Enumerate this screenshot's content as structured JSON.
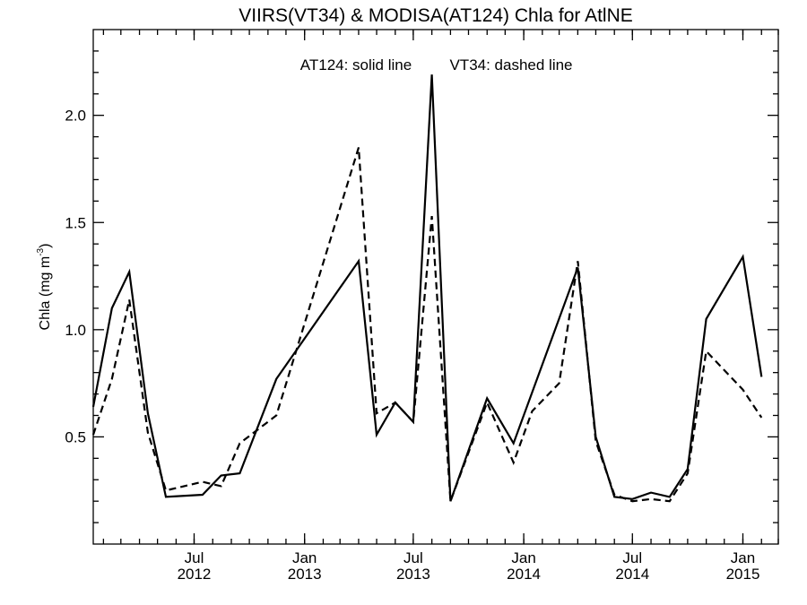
{
  "chart_data": {
    "type": "line",
    "title": "VIIRS(VT34) & MODISA(AT124)  Chla for AtlNE",
    "annotation_solid": "AT124: solid line",
    "annotation_dashed": "VT34: dashed line",
    "ylabel_main": "Chla (mg m",
    "ylabel_sup": "-3",
    "ylabel_close": ")",
    "xlim": [
      "2012-01-15",
      "2015-03-01"
    ],
    "ylim": [
      0.0,
      2.4
    ],
    "yticks": [
      "0.5",
      "1.0",
      "1.5",
      "2.0"
    ],
    "ytick_values": [
      0.5,
      1.0,
      1.5,
      2.0
    ],
    "xticks": [
      {
        "date": "2012-07-01",
        "month": "Jul",
        "year": "2012"
      },
      {
        "date": "2013-01-01",
        "month": "Jan",
        "year": "2013"
      },
      {
        "date": "2013-07-01",
        "month": "Jul",
        "year": "2013"
      },
      {
        "date": "2014-01-01",
        "month": "Jan",
        "year": "2014"
      },
      {
        "date": "2014-07-01",
        "month": "Jul",
        "year": "2014"
      },
      {
        "date": "2015-01-01",
        "month": "Jan",
        "year": "2015"
      }
    ],
    "series": [
      {
        "name": "AT124",
        "style": "solid",
        "color": "#000000",
        "points": [
          [
            "2012-01-15",
            0.64
          ],
          [
            "2012-02-15",
            1.1
          ],
          [
            "2012-03-15",
            1.27
          ],
          [
            "2012-04-15",
            0.61
          ],
          [
            "2012-05-15",
            0.22
          ],
          [
            "2012-07-15",
            0.23
          ],
          [
            "2012-08-15",
            0.32
          ],
          [
            "2012-09-15",
            0.33
          ],
          [
            "2012-11-15",
            0.77
          ],
          [
            "2013-04-01",
            1.32
          ],
          [
            "2013-05-01",
            0.51
          ],
          [
            "2013-06-01",
            0.66
          ],
          [
            "2013-07-01",
            0.57
          ],
          [
            "2013-08-01",
            2.19
          ],
          [
            "2013-09-01",
            0.2
          ],
          [
            "2013-11-01",
            0.68
          ],
          [
            "2013-12-15",
            0.47
          ],
          [
            "2014-04-01",
            1.29
          ],
          [
            "2014-05-01",
            0.5
          ],
          [
            "2014-06-01",
            0.22
          ],
          [
            "2014-07-01",
            0.21
          ],
          [
            "2014-08-01",
            0.24
          ],
          [
            "2014-09-01",
            0.22
          ],
          [
            "2014-10-01",
            0.35
          ],
          [
            "2014-11-01",
            1.05
          ],
          [
            "2015-01-01",
            1.34
          ],
          [
            "2015-02-01",
            0.78
          ]
        ]
      },
      {
        "name": "VT34",
        "style": "dashed",
        "color": "#000000",
        "points": [
          [
            "2012-01-15",
            0.51
          ],
          [
            "2012-02-15",
            0.77
          ],
          [
            "2012-03-15",
            1.14
          ],
          [
            "2012-04-15",
            0.52
          ],
          [
            "2012-05-15",
            0.25
          ],
          [
            "2012-07-15",
            0.29
          ],
          [
            "2012-08-15",
            0.27
          ],
          [
            "2012-09-15",
            0.47
          ],
          [
            "2012-11-15",
            0.6
          ],
          [
            "2013-04-01",
            1.85
          ],
          [
            "2013-05-01",
            0.61
          ],
          [
            "2013-06-01",
            0.66
          ],
          [
            "2013-07-01",
            0.57
          ],
          [
            "2013-08-01",
            1.53
          ],
          [
            "2013-09-01",
            0.2
          ],
          [
            "2013-11-01",
            0.66
          ],
          [
            "2013-12-15",
            0.38
          ],
          [
            "2014-01-15",
            0.62
          ],
          [
            "2014-03-01",
            0.75
          ],
          [
            "2014-04-01",
            1.32
          ],
          [
            "2014-05-01",
            0.48
          ],
          [
            "2014-06-01",
            0.23
          ],
          [
            "2014-07-01",
            0.2
          ],
          [
            "2014-08-01",
            0.21
          ],
          [
            "2014-09-01",
            0.2
          ],
          [
            "2014-10-01",
            0.33
          ],
          [
            "2014-11-01",
            0.9
          ],
          [
            "2015-01-01",
            0.72
          ],
          [
            "2015-02-01",
            0.59
          ]
        ]
      }
    ]
  }
}
